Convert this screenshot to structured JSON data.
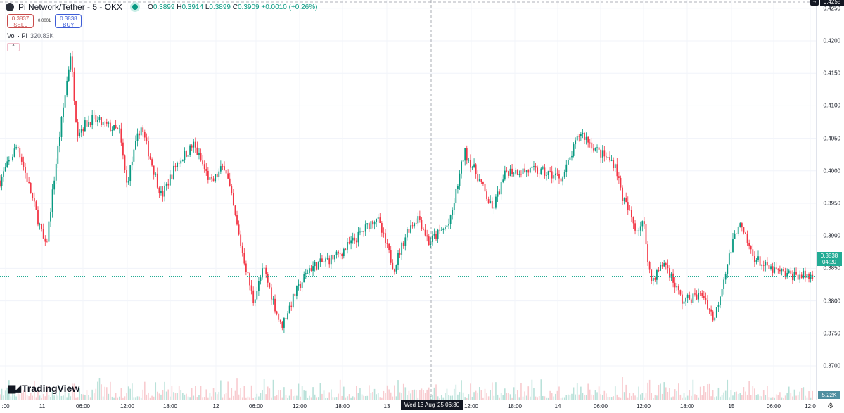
{
  "header": {
    "title": "Pi Network/Tether - 5 - OKX",
    "ohlc": {
      "o_label": "O",
      "o": "0.3899",
      "h_label": "H",
      "h": "0.3914",
      "l_label": "L",
      "l": "0.3899",
      "c_label": "C",
      "c": "0.3909",
      "change": "+0.0010 (+0.26%)"
    },
    "market_status_color": "#089981"
  },
  "trade": {
    "sell_price": "0.3837",
    "sell_label": "SELL",
    "spread": "0.0001",
    "buy_price": "0.3838",
    "buy_label": "BUY"
  },
  "volume_legend": {
    "label": "Vol · PI",
    "value": "320.83K",
    "last_value": "5.22K"
  },
  "collapse_icon": "chevron-up-icon",
  "brand": {
    "name": "TradingView",
    "mark": "17"
  },
  "crosshair": {
    "time_label": "Wed 13 Aug '25  06:30",
    "price_label": "0.4258"
  },
  "current_price": {
    "price": "0.3838",
    "countdown": "04:20",
    "color": "#22ab94"
  },
  "colors": {
    "up": "#089981",
    "down": "#f23645"
  },
  "chart_data": {
    "type": "candlestick",
    "interval": "5",
    "symbol": "PI/USDT",
    "y_ticks": [
      "0.4250",
      "0.4200",
      "0.4150",
      "0.4100",
      "0.4050",
      "0.4000",
      "0.3950",
      "0.3900",
      "0.3850",
      "0.3800",
      "0.3750",
      "0.3700"
    ],
    "ylim": [
      0.3685,
      0.4262
    ],
    "x_ticks": [
      ":00",
      "11",
      "06:00",
      "12:00",
      "18:00",
      "12",
      "06:00",
      "12:00",
      "18:00",
      "13",
      "12:00",
      "18:00",
      "14",
      "06:00",
      "12:00",
      "18:00",
      "15",
      "06:00",
      "12:0"
    ],
    "grid": true,
    "approx_price_path": [
      [
        "08-10 18:10",
        0.3985
      ],
      [
        "08-10 20:35",
        0.404
      ],
      [
        "08-10 22:35",
        0.396
      ],
      [
        "08-11 00:30",
        0.388
      ],
      [
        "08-11 02:00",
        0.402
      ],
      [
        "08-11 03:55",
        0.418
      ],
      [
        "08-11 04:50",
        0.406
      ],
      [
        "08-11 06:50",
        0.408
      ],
      [
        "08-11 10:40",
        0.406
      ],
      [
        "08-11 11:40",
        0.398
      ],
      [
        "08-11 13:35",
        0.407
      ],
      [
        "08-11 16:30",
        0.396
      ],
      [
        "08-11 18:30",
        0.401
      ],
      [
        "08-11 20:55",
        0.404
      ],
      [
        "08-11 23:20",
        0.398
      ],
      [
        "08-12 01:15",
        0.401
      ],
      [
        "08-12 03:10",
        0.39
      ],
      [
        "08-12 05:10",
        0.38
      ],
      [
        "08-12 06:35",
        0.385
      ],
      [
        "08-12 09:00",
        0.376
      ],
      [
        "08-12 10:55",
        0.381
      ],
      [
        "08-12 12:55",
        0.385
      ],
      [
        "08-12 16:50",
        0.387
      ],
      [
        "08-12 19:45",
        0.39
      ],
      [
        "08-12 22:10",
        0.393
      ],
      [
        "08-13 00:35",
        0.385
      ],
      [
        "08-13 02:30",
        0.391
      ],
      [
        "08-13 04:00",
        0.393
      ],
      [
        "08-13 05:25",
        0.389
      ],
      [
        "08-13 08:20",
        0.392
      ],
      [
        "08-13 10:20",
        0.403
      ],
      [
        "08-13 12:15",
        0.399
      ],
      [
        "08-13 14:10",
        0.394
      ],
      [
        "08-13 16:10",
        0.4
      ],
      [
        "08-13 20:00",
        0.4
      ],
      [
        "08-13 23:55",
        0.399
      ],
      [
        "08-14 02:20",
        0.406
      ],
      [
        "08-14 04:45",
        0.403
      ],
      [
        "08-14 07:10",
        0.401
      ],
      [
        "08-14 08:10",
        0.396
      ],
      [
        "08-14 10:05",
        0.391
      ],
      [
        "08-14 11:05",
        0.392
      ],
      [
        "08-14 12:05",
        0.383
      ],
      [
        "08-14 14:00",
        0.386
      ],
      [
        "08-14 16:25",
        0.38
      ],
      [
        "08-14 19:20",
        0.381
      ],
      [
        "08-14 20:50",
        0.377
      ],
      [
        "08-14 22:15",
        0.384
      ],
      [
        "08-15 00:10",
        0.392
      ],
      [
        "08-15 02:10",
        0.387
      ],
      [
        "08-15 04:05",
        0.385
      ],
      [
        "08-15 07:00",
        0.384
      ],
      [
        "08-15 10:25",
        0.3838
      ]
    ]
  }
}
